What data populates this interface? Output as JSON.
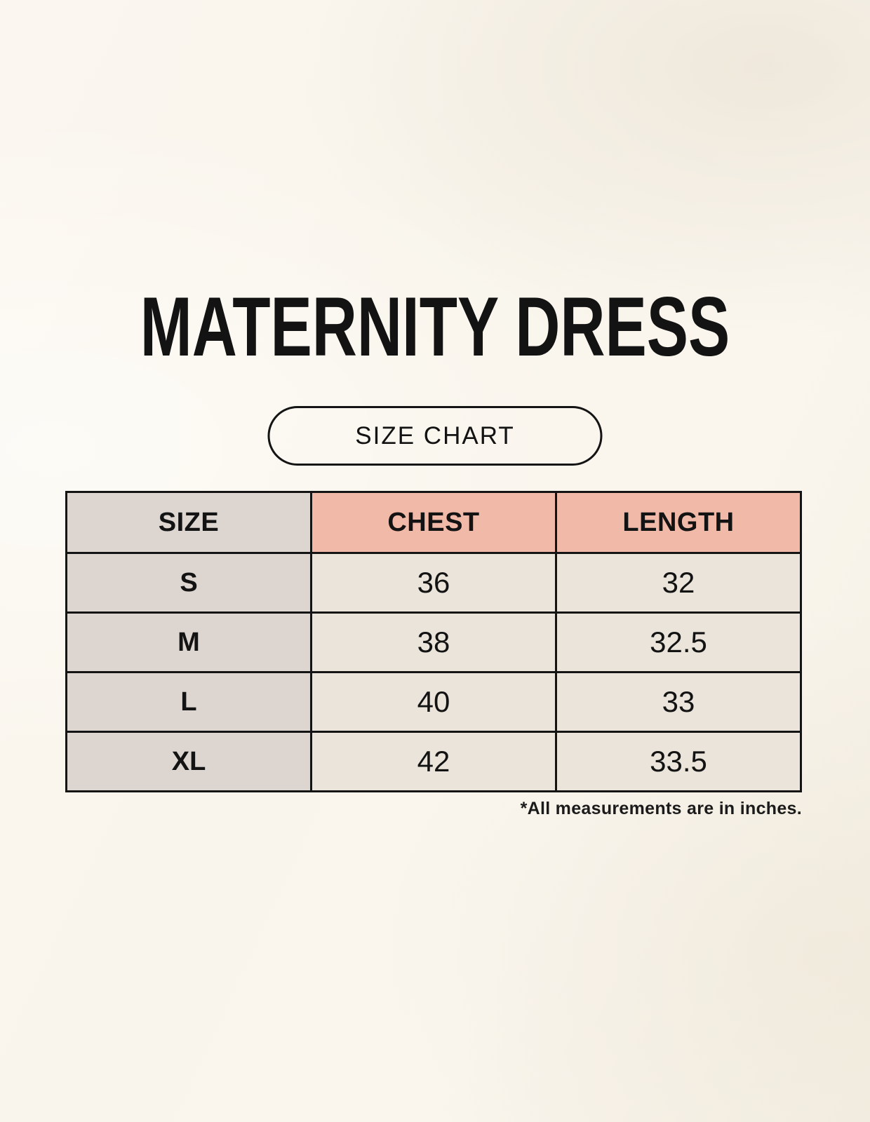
{
  "title": "MATERNITY DRESS",
  "badge": {
    "label": "SIZE CHART"
  },
  "table": {
    "columns": [
      "SIZE",
      "CHEST",
      "LENGTH"
    ],
    "rows": [
      {
        "size": "S",
        "chest": "36",
        "length": "32"
      },
      {
        "size": "M",
        "chest": "38",
        "length": "32.5"
      },
      {
        "size": "L",
        "chest": "40",
        "length": "33"
      },
      {
        "size": "XL",
        "chest": "42",
        "length": "33.5"
      }
    ]
  },
  "footnote": "*All measurements are in inches.",
  "colors": {
    "background": "#faf6ee",
    "size_col": "#dcd5d0",
    "header_accent": "#f1b9a8",
    "data_cell": "#ebe4da",
    "border": "#141414",
    "text": "#131313"
  },
  "chart_data": {
    "type": "table",
    "title": "MATERNITY DRESS",
    "columns": [
      "SIZE",
      "CHEST",
      "LENGTH"
    ],
    "rows": [
      [
        "S",
        36,
        32
      ],
      [
        "M",
        38,
        32.5
      ],
      [
        "L",
        40,
        33
      ],
      [
        "XL",
        42,
        33.5
      ]
    ],
    "units": "inches",
    "note": "*All measurements are in inches."
  }
}
